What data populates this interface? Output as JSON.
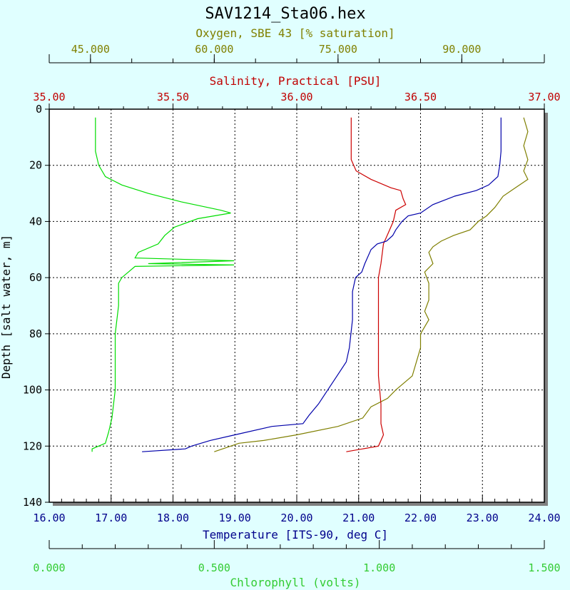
{
  "chart_data": {
    "type": "line",
    "title": "SAV1214_Sta06.hex",
    "colors": {
      "background": "#e0ffff",
      "plot_background": "#ffffff",
      "temperature": "#0000aa",
      "salinity": "#cc0000",
      "oxygen": "#7f7f00",
      "chlorophyll": "#00dd00",
      "temperature_axis": "#00008b",
      "salinity_axis": "#c00000",
      "oxygen_axis": "#808000",
      "chlorophyll_axis": "#33cc33"
    },
    "grid": true,
    "axes": {
      "depth": {
        "label": "Depth [salt water, m]",
        "range": [
          0,
          140
        ],
        "inverted": true,
        "ticks": [
          0,
          20,
          40,
          60,
          80,
          100,
          120,
          140
        ],
        "tick_labels": [
          "0",
          "20",
          "40",
          "60",
          "80",
          "100",
          "120",
          "140"
        ]
      },
      "temperature": {
        "label": "Temperature [ITS-90, deg C]",
        "range": [
          16,
          24
        ],
        "position": "bottom",
        "ticks": [
          16,
          17,
          18,
          19,
          20,
          21,
          22,
          23,
          24
        ],
        "tick_labels": [
          "16.00",
          "17.00",
          "18.00",
          "19.00",
          "20.00",
          "21.00",
          "22.00",
          "23.00",
          "24.00"
        ]
      },
      "chlorophyll": {
        "label": "Chlorophyll (volts)",
        "range": [
          0,
          1.5
        ],
        "position": "bottom",
        "ticks": [
          0,
          0.5,
          1.0,
          1.5
        ],
        "tick_labels": [
          "0.000",
          "0.500",
          "1.000",
          "1.500"
        ]
      },
      "salinity": {
        "label": "Salinity, Practical [PSU]",
        "range": [
          35,
          37
        ],
        "position": "top",
        "ticks": [
          35,
          35.5,
          36,
          36.5,
          37
        ],
        "tick_labels": [
          "35.00",
          "35.50",
          "36.00",
          "36.50",
          "37.00"
        ]
      },
      "oxygen": {
        "label": "Oxygen, SBE 43 [% saturation]",
        "range": [
          40,
          100
        ],
        "position": "top",
        "ticks": [
          45,
          60,
          75,
          90
        ],
        "tick_labels": [
          "45.000",
          "60.000",
          "75.000",
          "90.000"
        ]
      }
    },
    "series": [
      {
        "key": "temperature",
        "axis": "temperature",
        "points": [
          [
            23.3,
            3
          ],
          [
            23.3,
            8
          ],
          [
            23.3,
            15
          ],
          [
            23.28,
            20
          ],
          [
            23.25,
            24
          ],
          [
            23.1,
            27
          ],
          [
            22.9,
            29
          ],
          [
            22.55,
            31
          ],
          [
            22.2,
            34
          ],
          [
            22.0,
            37
          ],
          [
            21.8,
            38
          ],
          [
            21.7,
            40
          ],
          [
            21.6,
            43
          ],
          [
            21.55,
            45
          ],
          [
            21.45,
            47
          ],
          [
            21.3,
            48
          ],
          [
            21.2,
            50
          ],
          [
            21.1,
            55
          ],
          [
            21.05,
            58
          ],
          [
            20.95,
            60
          ],
          [
            20.9,
            65
          ],
          [
            20.9,
            75
          ],
          [
            20.85,
            85
          ],
          [
            20.8,
            90
          ],
          [
            20.65,
            95
          ],
          [
            20.5,
            100
          ],
          [
            20.35,
            105
          ],
          [
            20.2,
            109
          ],
          [
            20.1,
            112
          ],
          [
            19.6,
            113
          ],
          [
            19.0,
            116
          ],
          [
            18.6,
            118
          ],
          [
            18.3,
            120
          ],
          [
            18.2,
            121
          ],
          [
            17.5,
            122
          ]
        ]
      },
      {
        "key": "salinity",
        "axis": "salinity",
        "points": [
          [
            36.22,
            3
          ],
          [
            36.22,
            10
          ],
          [
            36.22,
            18
          ],
          [
            36.24,
            22
          ],
          [
            36.3,
            25
          ],
          [
            36.38,
            28
          ],
          [
            36.42,
            29
          ],
          [
            36.43,
            32
          ],
          [
            36.44,
            34
          ],
          [
            36.4,
            36
          ],
          [
            36.39,
            40
          ],
          [
            36.37,
            44
          ],
          [
            36.35,
            48
          ],
          [
            36.34,
            55
          ],
          [
            36.33,
            60
          ],
          [
            36.33,
            70
          ],
          [
            36.33,
            80
          ],
          [
            36.33,
            95
          ],
          [
            36.34,
            105
          ],
          [
            36.34,
            112
          ],
          [
            36.35,
            116
          ],
          [
            36.33,
            120
          ],
          [
            36.2,
            122
          ]
        ]
      },
      {
        "key": "oxygen",
        "axis": "oxygen",
        "points": [
          [
            97.5,
            3
          ],
          [
            98.0,
            8
          ],
          [
            97.5,
            13
          ],
          [
            98.0,
            18
          ],
          [
            97.5,
            22
          ],
          [
            98.0,
            25
          ],
          [
            97.0,
            27
          ],
          [
            96.0,
            29
          ],
          [
            95.0,
            31
          ],
          [
            94.0,
            35
          ],
          [
            93.0,
            38
          ],
          [
            92.0,
            40
          ],
          [
            91.0,
            43
          ],
          [
            89.0,
            45
          ],
          [
            87.5,
            47
          ],
          [
            86.5,
            49
          ],
          [
            86.0,
            51
          ],
          [
            86.5,
            55
          ],
          [
            85.5,
            58
          ],
          [
            86.0,
            62
          ],
          [
            86.0,
            68
          ],
          [
            85.5,
            72
          ],
          [
            86.0,
            75
          ],
          [
            85.0,
            80
          ],
          [
            85.0,
            85
          ],
          [
            84.5,
            90
          ],
          [
            84.0,
            95
          ],
          [
            82.0,
            100
          ],
          [
            81.0,
            103
          ],
          [
            79.0,
            106
          ],
          [
            78.0,
            110
          ],
          [
            75.0,
            113
          ],
          [
            70.0,
            116
          ],
          [
            66.0,
            118
          ],
          [
            63.0,
            119
          ],
          [
            60.0,
            122
          ]
        ]
      },
      {
        "key": "chlorophyll",
        "axis": "chlorophyll",
        "points": [
          [
            0.14,
            3
          ],
          [
            0.14,
            10
          ],
          [
            0.14,
            15
          ],
          [
            0.15,
            20
          ],
          [
            0.17,
            24
          ],
          [
            0.22,
            27
          ],
          [
            0.3,
            30
          ],
          [
            0.4,
            33
          ],
          [
            0.52,
            36
          ],
          [
            0.55,
            37
          ],
          [
            0.45,
            39
          ],
          [
            0.38,
            42
          ],
          [
            0.35,
            45
          ],
          [
            0.33,
            48
          ],
          [
            0.27,
            51
          ],
          [
            0.26,
            53
          ],
          [
            0.56,
            54
          ],
          [
            0.3,
            55
          ],
          [
            0.56,
            55.5
          ],
          [
            0.26,
            56
          ],
          [
            0.24,
            58
          ],
          [
            0.22,
            60
          ],
          [
            0.21,
            62
          ],
          [
            0.21,
            70
          ],
          [
            0.2,
            80
          ],
          [
            0.2,
            90
          ],
          [
            0.2,
            100
          ],
          [
            0.19,
            110
          ],
          [
            0.18,
            115
          ],
          [
            0.17,
            119
          ],
          [
            0.13,
            121
          ],
          [
            0.13,
            122
          ]
        ]
      }
    ]
  }
}
